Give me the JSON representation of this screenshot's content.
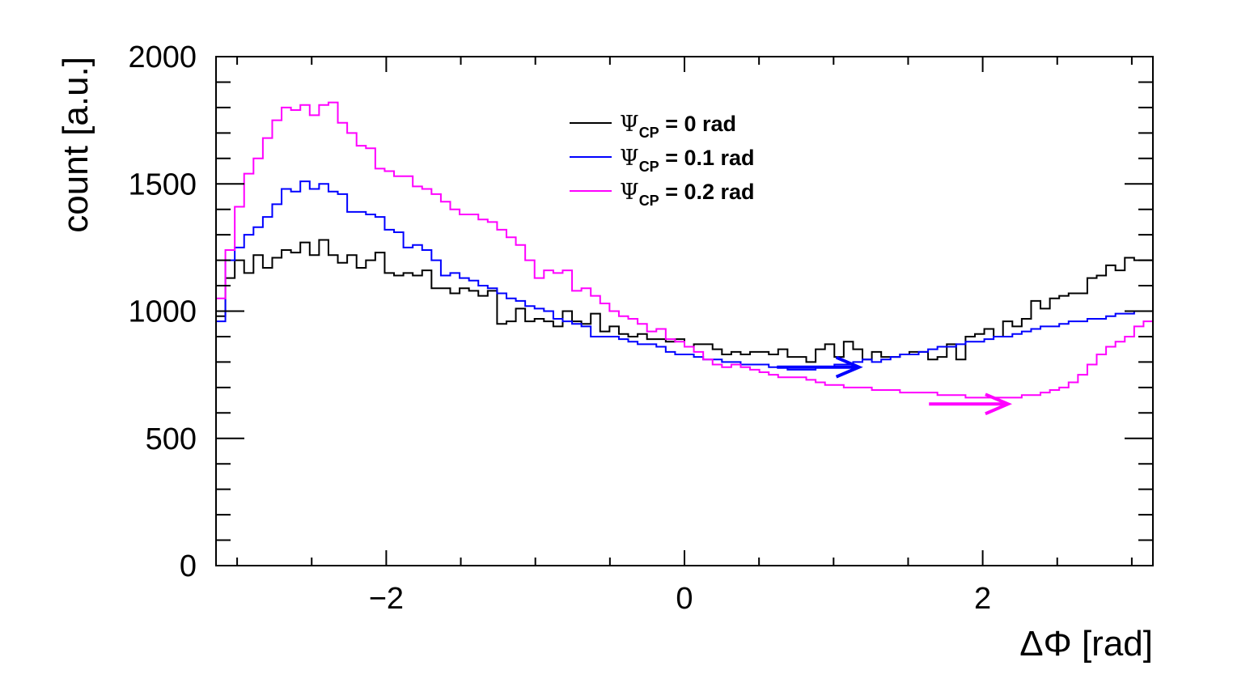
{
  "chart_data": {
    "type": "line",
    "step": true,
    "xlabel": "ΔΦ [rad]",
    "ylabel": "count [a.u.]",
    "xlim": [
      -3.14159,
      3.14159
    ],
    "ylim": [
      0,
      2000
    ],
    "x_ticks": [
      -2,
      0,
      2
    ],
    "x_tick_labels": [
      "−2",
      "0",
      "2"
    ],
    "y_ticks": [
      0,
      500,
      1000,
      1500,
      2000
    ],
    "y_tick_labels": [
      "0",
      "500",
      "1000",
      "1500",
      "2000"
    ],
    "grid": false,
    "legend_position": "top-center",
    "bins": 100,
    "series": [
      {
        "name": "Ψ_CP = 0 rad",
        "legend_symbol": "Ψ",
        "legend_sub": "CP",
        "legend_text": " = 0 rad",
        "color": "#000000",
        "values": [
          980,
          1130,
          1200,
          1150,
          1220,
          1170,
          1210,
          1240,
          1230,
          1270,
          1220,
          1280,
          1220,
          1190,
          1220,
          1170,
          1200,
          1230,
          1150,
          1140,
          1150,
          1140,
          1160,
          1090,
          1090,
          1070,
          1090,
          1080,
          1060,
          1080,
          950,
          960,
          1010,
          960,
          970,
          960,
          940,
          1000,
          960,
          950,
          990,
          920,
          940,
          910,
          900,
          910,
          890,
          890,
          880,
          890,
          860,
          870,
          870,
          850,
          830,
          840,
          830,
          840,
          840,
          830,
          850,
          820,
          820,
          800,
          850,
          870,
          820,
          880,
          850,
          810,
          840,
          820,
          820,
          830,
          840,
          840,
          810,
          820,
          870,
          810,
          900,
          910,
          930,
          900,
          960,
          940,
          970,
          1040,
          1010,
          1050,
          1060,
          1070,
          1070,
          1130,
          1140,
          1180,
          1160,
          1210,
          1200,
          1200
        ]
      },
      {
        "name": "Ψ_CP = 0.1 rad",
        "legend_symbol": "Ψ",
        "legend_sub": "CP",
        "legend_text": " = 0.1 rad",
        "color": "#0000ff",
        "values": [
          960,
          1200,
          1250,
          1300,
          1330,
          1370,
          1420,
          1480,
          1470,
          1510,
          1480,
          1500,
          1470,
          1460,
          1390,
          1390,
          1380,
          1370,
          1320,
          1310,
          1250,
          1260,
          1240,
          1200,
          1140,
          1150,
          1130,
          1120,
          1100,
          1090,
          1070,
          1050,
          1040,
          1020,
          1010,
          1000,
          970,
          960,
          950,
          940,
          900,
          900,
          900,
          890,
          880,
          870,
          870,
          860,
          840,
          830,
          830,
          820,
          810,
          810,
          800,
          800,
          790,
          790,
          790,
          780,
          780,
          770,
          770,
          770,
          780,
          780,
          790,
          790,
          800,
          810,
          800,
          810,
          820,
          830,
          830,
          840,
          850,
          860,
          860,
          870,
          880,
          880,
          890,
          900,
          900,
          910,
          920,
          930,
          940,
          940,
          950,
          960,
          960,
          970,
          970,
          980,
          990,
          990,
          1000,
          1000
        ]
      },
      {
        "name": "Ψ_CP = 0.2 rad",
        "legend_symbol": "Ψ",
        "legend_sub": "CP",
        "legend_text": " = 0.2 rad",
        "color": "#ff00ff",
        "values": [
          1050,
          1240,
          1410,
          1540,
          1600,
          1680,
          1750,
          1800,
          1790,
          1810,
          1770,
          1810,
          1820,
          1740,
          1700,
          1650,
          1640,
          1560,
          1550,
          1530,
          1530,
          1490,
          1480,
          1460,
          1430,
          1400,
          1380,
          1380,
          1360,
          1350,
          1320,
          1290,
          1260,
          1200,
          1130,
          1160,
          1150,
          1160,
          1080,
          1090,
          1060,
          1030,
          1000,
          980,
          970,
          950,
          920,
          930,
          890,
          880,
          860,
          840,
          810,
          790,
          780,
          790,
          780,
          770,
          760,
          750,
          740,
          740,
          740,
          730,
          720,
          710,
          710,
          700,
          700,
          700,
          690,
          690,
          690,
          680,
          680,
          680,
          680,
          670,
          670,
          670,
          660,
          660,
          660,
          660,
          660,
          660,
          670,
          670,
          680,
          690,
          700,
          720,
          750,
          790,
          830,
          860,
          880,
          900,
          940,
          960
        ]
      }
    ],
    "annotations": [
      {
        "type": "arrow",
        "color": "#0000ff",
        "from": [
          0.62,
          780
        ],
        "to": [
          1.17,
          780
        ]
      },
      {
        "type": "arrow",
        "color": "#ff00ff",
        "from": [
          1.64,
          635
        ],
        "to": [
          2.17,
          635
        ]
      }
    ]
  }
}
